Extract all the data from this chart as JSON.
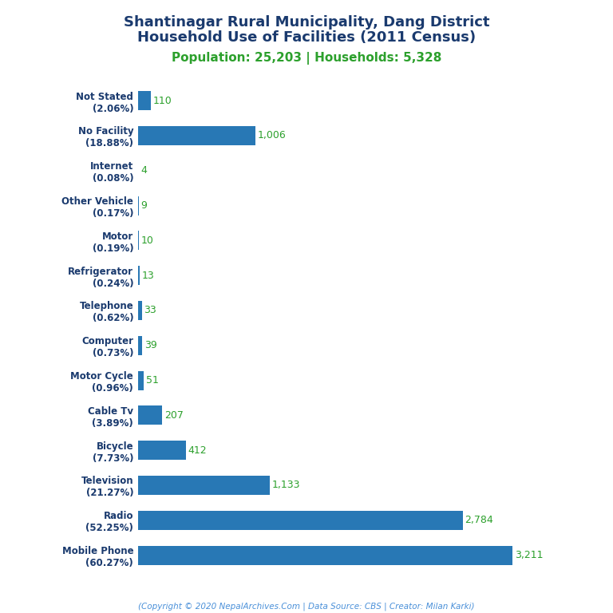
{
  "title_line1": "Shantinagar Rural Municipality, Dang District",
  "title_line2": "Household Use of Facilities (2011 Census)",
  "subtitle": "Population: 25,203 | Households: 5,328",
  "footer": "(Copyright © 2020 NepalArchives.Com | Data Source: CBS | Creator: Milan Karki)",
  "categories": [
    "Not Stated\n(2.06%)",
    "No Facility\n(18.88%)",
    "Internet\n(0.08%)",
    "Other Vehicle\n(0.17%)",
    "Motor\n(0.19%)",
    "Refrigerator\n(0.24%)",
    "Telephone\n(0.62%)",
    "Computer\n(0.73%)",
    "Motor Cycle\n(0.96%)",
    "Cable Tv\n(3.89%)",
    "Bicycle\n(7.73%)",
    "Television\n(21.27%)",
    "Radio\n(52.25%)",
    "Mobile Phone\n(60.27%)"
  ],
  "values": [
    110,
    1006,
    4,
    9,
    10,
    13,
    33,
    39,
    51,
    207,
    412,
    1133,
    2784,
    3211
  ],
  "bar_color": "#2878b5",
  "value_color": "#2ca02c",
  "title_color": "#1a3a6e",
  "subtitle_color": "#2ca02c",
  "footer_color": "#4a90d9",
  "background_color": "#ffffff",
  "xlim": [
    0,
    3600
  ]
}
